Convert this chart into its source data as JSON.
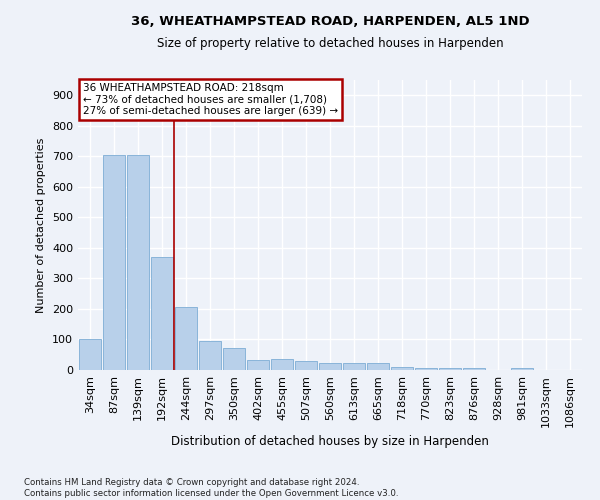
{
  "title1": "36, WHEATHAMPSTEAD ROAD, HARPENDEN, AL5 1ND",
  "title2": "Size of property relative to detached houses in Harpenden",
  "xlabel": "Distribution of detached houses by size in Harpenden",
  "ylabel": "Number of detached properties",
  "footnote": "Contains HM Land Registry data © Crown copyright and database right 2024.\nContains public sector information licensed under the Open Government Licence v3.0.",
  "bin_labels": [
    "34sqm",
    "87sqm",
    "139sqm",
    "192sqm",
    "244sqm",
    "297sqm",
    "350sqm",
    "402sqm",
    "455sqm",
    "507sqm",
    "560sqm",
    "613sqm",
    "665sqm",
    "718sqm",
    "770sqm",
    "823sqm",
    "876sqm",
    "928sqm",
    "981sqm",
    "1033sqm",
    "1086sqm"
  ],
  "bar_values": [
    100,
    705,
    705,
    370,
    205,
    95,
    72,
    32,
    35,
    30,
    22,
    22,
    22,
    10,
    8,
    8,
    8,
    0,
    8,
    0,
    0
  ],
  "bar_color": "#b8d0ea",
  "bar_edge_color": "#89b4d9",
  "annotation_text": "36 WHEATHAMPSTEAD ROAD: 218sqm\n← 73% of detached houses are smaller (1,708)\n27% of semi-detached houses are larger (639) →",
  "annotation_box_color": "#ffffff",
  "annotation_box_edge": "#aa0000",
  "vline_x_index": 3.5,
  "vline_color": "#aa0000",
  "background_color": "#eef2f9",
  "grid_color": "#ffffff",
  "ylim": [
    0,
    950
  ],
  "yticks": [
    0,
    100,
    200,
    300,
    400,
    500,
    600,
    700,
    800,
    900
  ]
}
